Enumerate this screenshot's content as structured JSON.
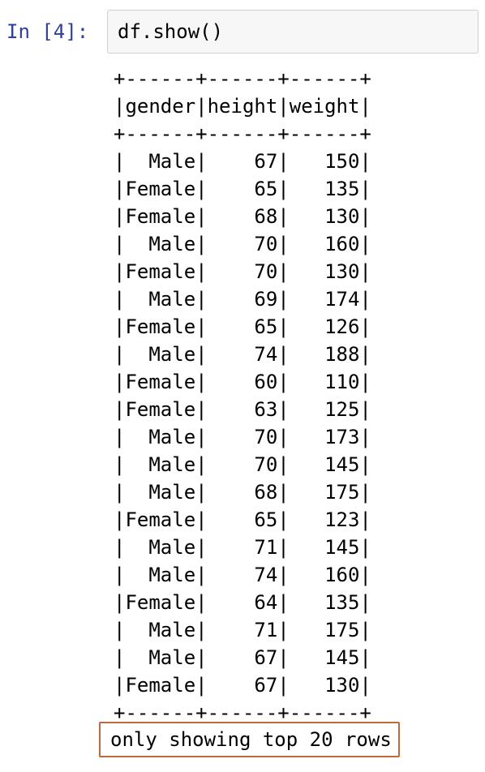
{
  "cell": {
    "prompt": "In [4]:",
    "code": "df.show()"
  },
  "output": {
    "border": "+------+------+------+",
    "header": "|gender|height|weight|",
    "rows": [
      "|  Male|    67|   150|",
      "|Female|    65|   135|",
      "|Female|    68|   130|",
      "|  Male|    70|   160|",
      "|Female|    70|   130|",
      "|  Male|    69|   174|",
      "|Female|    65|   126|",
      "|  Male|    74|   188|",
      "|Female|    60|   110|",
      "|Female|    63|   125|",
      "|  Male|    70|   173|",
      "|  Male|    70|   145|",
      "|  Male|    68|   175|",
      "|Female|    65|   123|",
      "|  Male|    71|   145|",
      "|  Male|    74|   160|",
      "|Female|    64|   135|",
      "|  Male|    71|   175|",
      "|  Male|    67|   145|",
      "|Female|    67|   130|"
    ],
    "footer": "only showing top 20 rows"
  },
  "colors": {
    "prompt": "#303f9f",
    "cell_background": "#f7f7f7",
    "cell_border": "#cfcfcf",
    "highlight_border": "#c0673e"
  }
}
